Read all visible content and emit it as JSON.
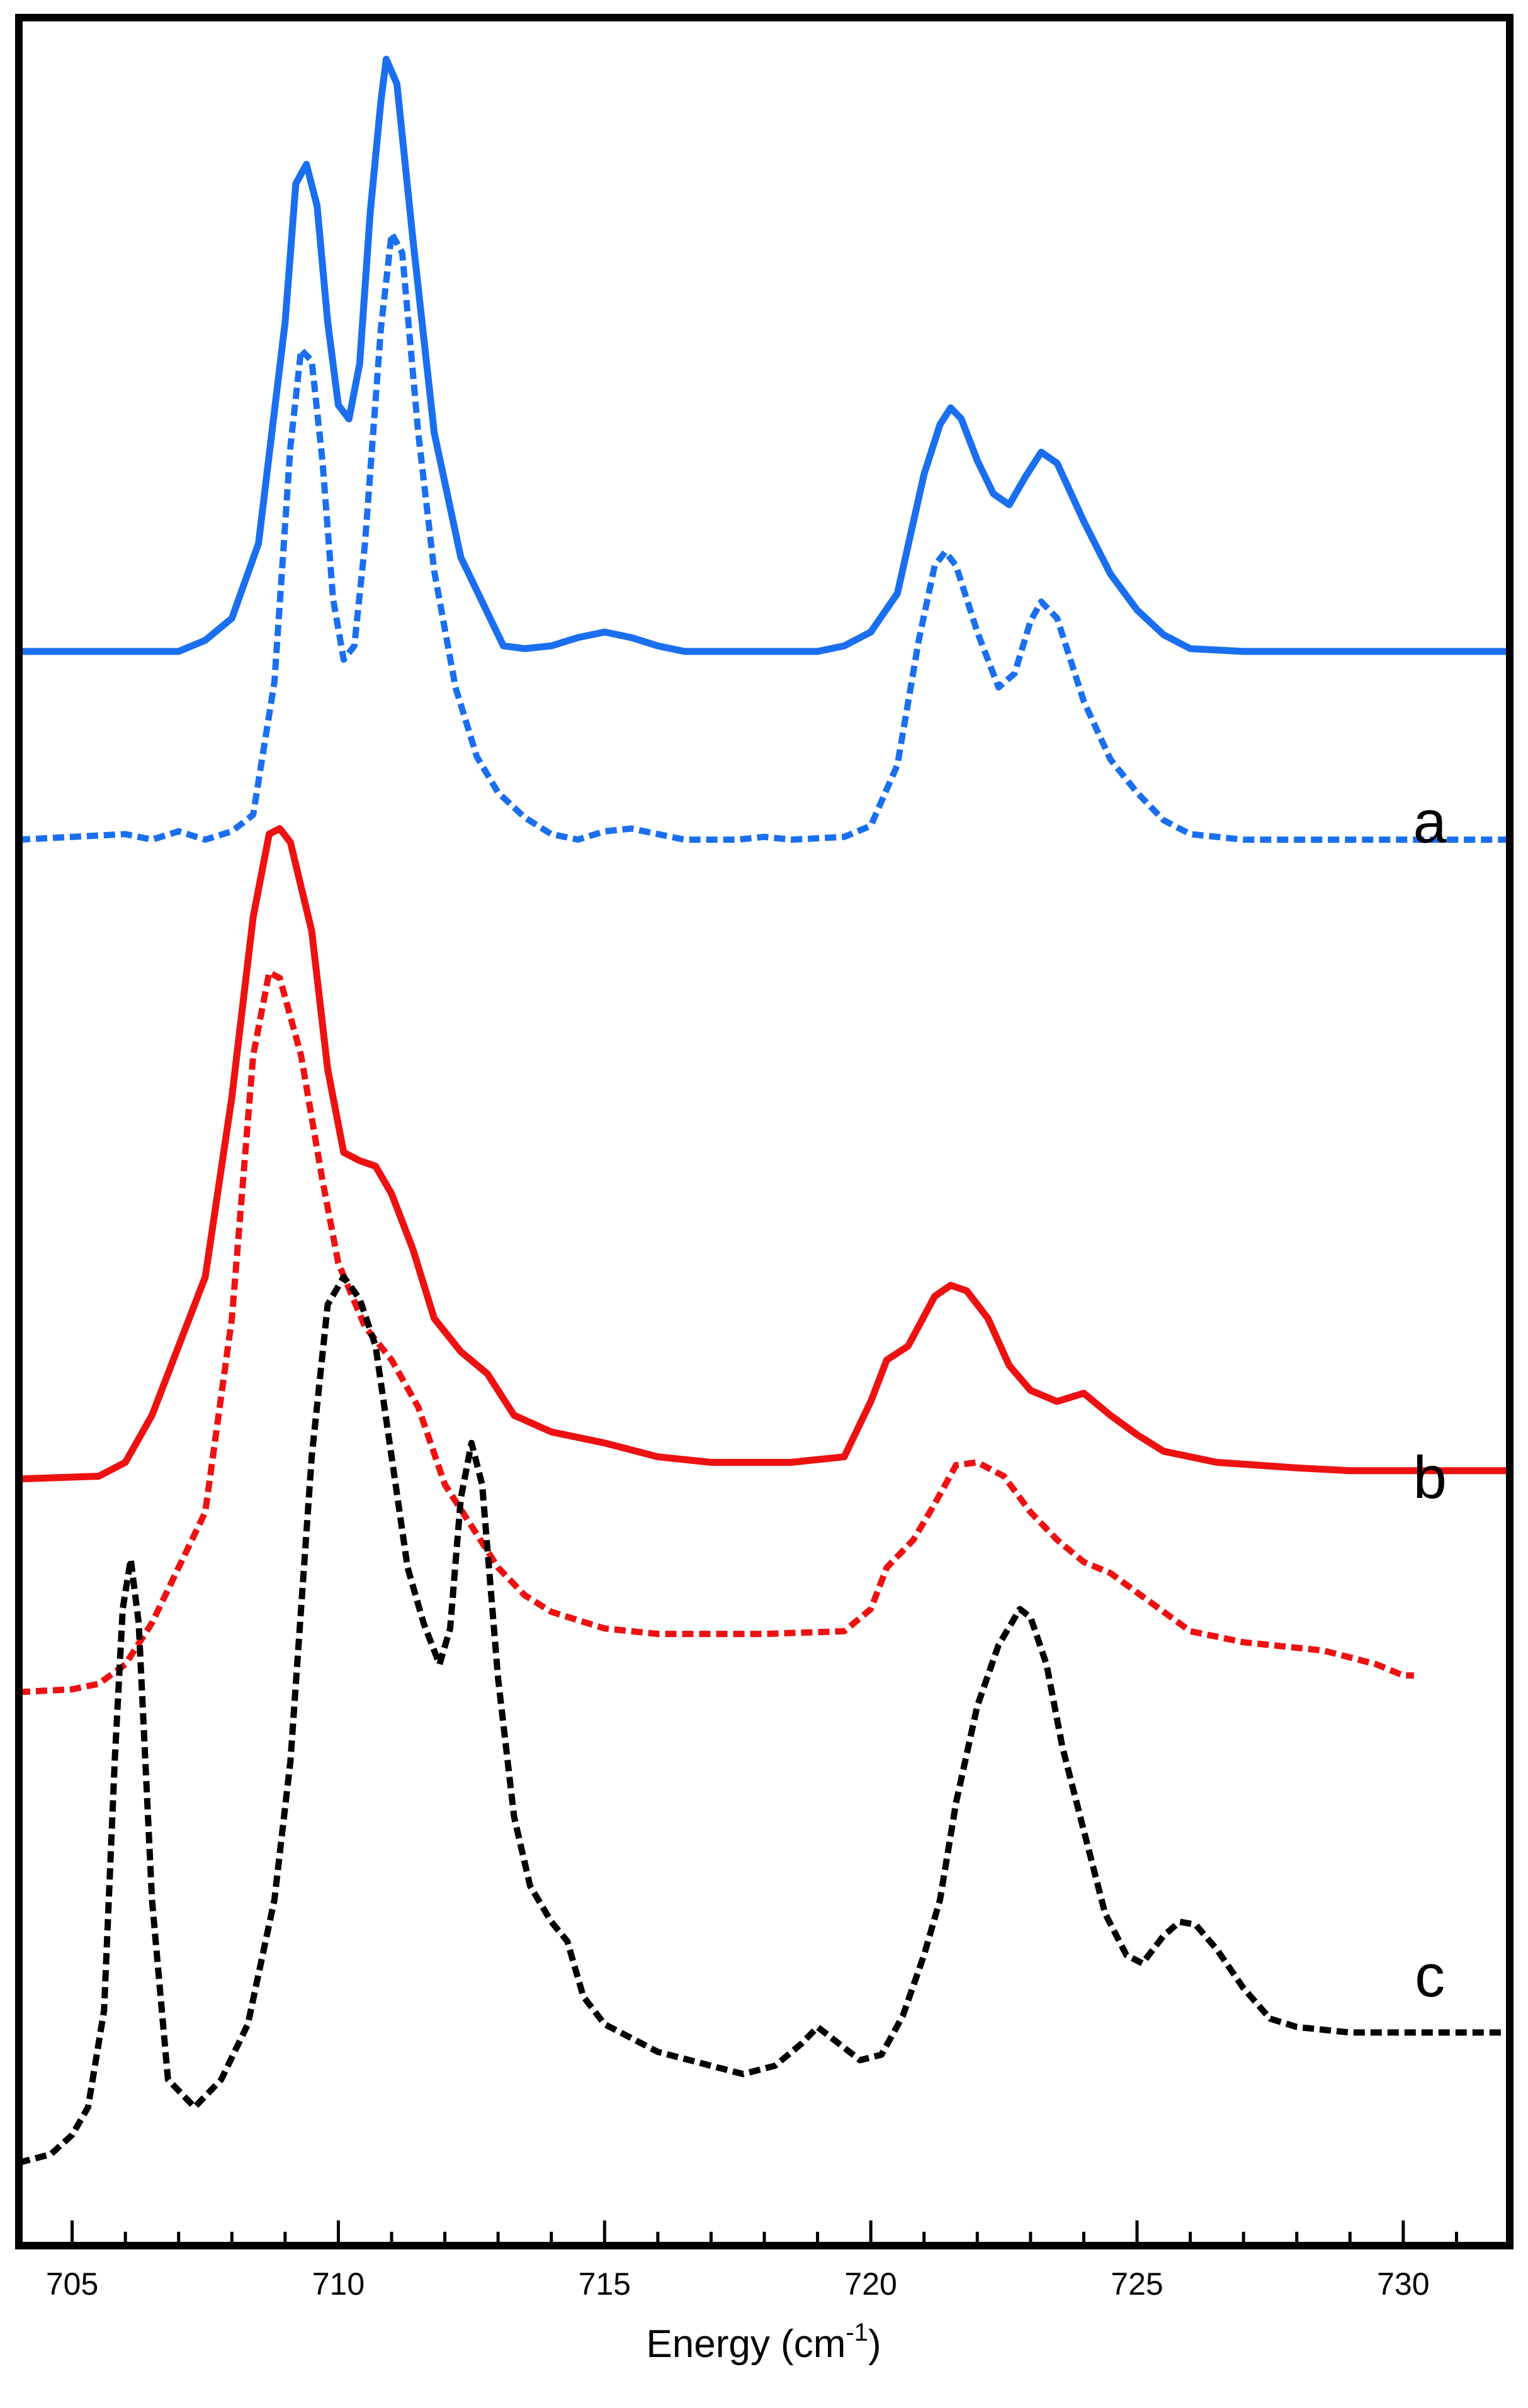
{
  "chart_data": {
    "type": "line",
    "title": "",
    "xlabel": {
      "main": "Energy (cm",
      "sup": "-1",
      "close": ")"
    },
    "ylabel": "",
    "xlim": [
      704.0,
      732.0
    ],
    "y_ticks_shown": false,
    "grid": false,
    "x_ticks": [
      705,
      710,
      715,
      720,
      725,
      730
    ],
    "panel_labels": [
      {
        "text": "a",
        "x": 730.5,
        "y": 38.2
      },
      {
        "text": "b",
        "x": 730.5,
        "y": 14.5
      },
      {
        "text": "c",
        "x": 730.5,
        "y": -3.5
      }
    ],
    "colors": {
      "blue": "#1a6ff0",
      "red": "#ee1111",
      "black": "#000000"
    },
    "series": [
      {
        "color": "blue",
        "style": "solid",
        "points": [
          [
            704.0,
            45.1
          ],
          [
            707.0,
            45.1
          ],
          [
            707.5,
            45.5
          ],
          [
            708.0,
            46.3
          ],
          [
            708.5,
            49.0
          ],
          [
            709.0,
            57.0
          ],
          [
            709.2,
            62.0
          ],
          [
            709.4,
            62.7
          ],
          [
            709.6,
            61.2
          ],
          [
            709.8,
            57.0
          ],
          [
            710.0,
            54.0
          ],
          [
            710.2,
            53.5
          ],
          [
            710.4,
            55.5
          ],
          [
            710.6,
            61.0
          ],
          [
            710.8,
            65.0
          ],
          [
            710.9,
            66.5
          ],
          [
            711.1,
            65.6
          ],
          [
            711.4,
            60.0
          ],
          [
            711.8,
            53.0
          ],
          [
            712.3,
            48.5
          ],
          [
            712.8,
            46.5
          ],
          [
            713.1,
            45.3
          ],
          [
            713.5,
            45.2
          ],
          [
            714.0,
            45.3
          ],
          [
            714.5,
            45.6
          ],
          [
            715.0,
            45.8
          ],
          [
            715.5,
            45.6
          ],
          [
            716.0,
            45.3
          ],
          [
            716.5,
            45.1
          ],
          [
            719.0,
            45.1
          ],
          [
            719.5,
            45.3
          ],
          [
            720.0,
            45.8
          ],
          [
            720.5,
            47.2
          ],
          [
            721.0,
            51.5
          ],
          [
            721.3,
            53.3
          ],
          [
            721.5,
            53.9
          ],
          [
            721.7,
            53.5
          ],
          [
            722.0,
            52.0
          ],
          [
            722.3,
            50.8
          ],
          [
            722.6,
            50.4
          ],
          [
            722.9,
            51.4
          ],
          [
            723.2,
            52.3
          ],
          [
            723.5,
            51.9
          ],
          [
            724.0,
            49.8
          ],
          [
            724.5,
            47.9
          ],
          [
            725.0,
            46.6
          ],
          [
            725.5,
            45.7
          ],
          [
            726.0,
            45.2
          ],
          [
            727.0,
            45.1
          ],
          [
            732.0,
            45.1
          ]
        ]
      },
      {
        "color": "blue",
        "style": "dashed",
        "points": [
          [
            704.0,
            38.3
          ],
          [
            705.0,
            38.4
          ],
          [
            706.0,
            38.5
          ],
          [
            706.5,
            38.3
          ],
          [
            707.0,
            38.6
          ],
          [
            707.5,
            38.3
          ],
          [
            708.0,
            38.6
          ],
          [
            708.4,
            39.2
          ],
          [
            708.8,
            44.0
          ],
          [
            709.1,
            52.5
          ],
          [
            709.3,
            56.0
          ],
          [
            709.5,
            55.6
          ],
          [
            709.7,
            52.0
          ],
          [
            709.9,
            47.0
          ],
          [
            710.1,
            44.8
          ],
          [
            710.3,
            45.3
          ],
          [
            710.5,
            49.0
          ],
          [
            710.8,
            56.8
          ],
          [
            711.0,
            60.2
          ],
          [
            711.2,
            59.5
          ],
          [
            711.5,
            53.0
          ],
          [
            711.8,
            48.0
          ],
          [
            712.2,
            43.8
          ],
          [
            712.6,
            41.3
          ],
          [
            713.0,
            40.0
          ],
          [
            713.5,
            39.1
          ],
          [
            714.0,
            38.5
          ],
          [
            714.5,
            38.3
          ],
          [
            715.0,
            38.6
          ],
          [
            715.5,
            38.7
          ],
          [
            716.0,
            38.5
          ],
          [
            716.5,
            38.3
          ],
          [
            717.5,
            38.3
          ],
          [
            718.0,
            38.4
          ],
          [
            718.5,
            38.3
          ],
          [
            719.5,
            38.4
          ],
          [
            720.0,
            38.8
          ],
          [
            720.5,
            41.0
          ],
          [
            720.9,
            45.5
          ],
          [
            721.2,
            48.2
          ],
          [
            721.4,
            48.7
          ],
          [
            721.6,
            48.2
          ],
          [
            722.0,
            45.8
          ],
          [
            722.4,
            43.8
          ],
          [
            722.7,
            44.3
          ],
          [
            723.0,
            46.2
          ],
          [
            723.2,
            46.9
          ],
          [
            723.5,
            46.3
          ],
          [
            724.0,
            43.3
          ],
          [
            724.5,
            41.2
          ],
          [
            725.0,
            40.0
          ],
          [
            725.5,
            39.0
          ],
          [
            726.0,
            38.5
          ],
          [
            727.0,
            38.3
          ],
          [
            732.0,
            38.3
          ]
        ]
      },
      {
        "color": "red",
        "style": "solid",
        "points": [
          [
            704.0,
            15.2
          ],
          [
            705.5,
            15.3
          ],
          [
            706.0,
            15.8
          ],
          [
            706.5,
            17.5
          ],
          [
            707.0,
            20.0
          ],
          [
            707.5,
            22.5
          ],
          [
            708.0,
            29.0
          ],
          [
            708.4,
            35.5
          ],
          [
            708.7,
            38.5
          ],
          [
            708.9,
            38.7
          ],
          [
            709.1,
            38.2
          ],
          [
            709.5,
            35.0
          ],
          [
            709.8,
            30.0
          ],
          [
            710.1,
            27.0
          ],
          [
            710.4,
            26.7
          ],
          [
            710.7,
            26.5
          ],
          [
            711.0,
            25.5
          ],
          [
            711.4,
            23.5
          ],
          [
            711.8,
            21.0
          ],
          [
            712.3,
            19.8
          ],
          [
            712.8,
            19.0
          ],
          [
            713.3,
            17.5
          ],
          [
            714.0,
            16.9
          ],
          [
            715.0,
            16.5
          ],
          [
            716.0,
            16.0
          ],
          [
            717.0,
            15.8
          ],
          [
            718.5,
            15.8
          ],
          [
            719.5,
            16.0
          ],
          [
            720.0,
            18.0
          ],
          [
            720.3,
            19.5
          ],
          [
            720.7,
            20.0
          ],
          [
            721.2,
            21.8
          ],
          [
            721.5,
            22.2
          ],
          [
            721.8,
            22.0
          ],
          [
            722.2,
            21.0
          ],
          [
            722.6,
            19.3
          ],
          [
            723.0,
            18.4
          ],
          [
            723.5,
            18.0
          ],
          [
            724.0,
            18.3
          ],
          [
            724.5,
            17.5
          ],
          [
            725.0,
            16.8
          ],
          [
            725.5,
            16.2
          ],
          [
            726.5,
            15.8
          ],
          [
            728.0,
            15.6
          ],
          [
            729.0,
            15.5
          ],
          [
            732.0,
            15.5
          ]
        ]
      },
      {
        "color": "red",
        "style": "dashed",
        "points": [
          [
            704.0,
            7.5
          ],
          [
            705.0,
            7.6
          ],
          [
            705.5,
            7.8
          ],
          [
            706.0,
            8.5
          ],
          [
            706.5,
            10.0
          ],
          [
            707.0,
            12.0
          ],
          [
            707.5,
            14.0
          ],
          [
            708.0,
            21.0
          ],
          [
            708.4,
            30.5
          ],
          [
            708.7,
            33.5
          ],
          [
            708.9,
            33.3
          ],
          [
            709.3,
            30.5
          ],
          [
            709.7,
            26.0
          ],
          [
            710.0,
            23.0
          ],
          [
            710.5,
            20.7
          ],
          [
            711.0,
            19.5
          ],
          [
            711.5,
            17.8
          ],
          [
            712.0,
            15.0
          ],
          [
            712.5,
            13.5
          ],
          [
            713.0,
            12.0
          ],
          [
            713.5,
            11.0
          ],
          [
            714.0,
            10.4
          ],
          [
            715.0,
            9.8
          ],
          [
            716.0,
            9.6
          ],
          [
            718.0,
            9.6
          ],
          [
            719.5,
            9.7
          ],
          [
            720.0,
            10.5
          ],
          [
            720.3,
            12.0
          ],
          [
            720.8,
            13.0
          ],
          [
            721.2,
            14.3
          ],
          [
            721.6,
            15.7
          ],
          [
            722.0,
            15.8
          ],
          [
            722.5,
            15.3
          ],
          [
            723.0,
            14.0
          ],
          [
            723.5,
            13.0
          ],
          [
            724.0,
            12.2
          ],
          [
            724.5,
            11.8
          ],
          [
            725.0,
            11.1
          ],
          [
            725.5,
            10.4
          ],
          [
            726.0,
            9.7
          ],
          [
            727.0,
            9.3
          ],
          [
            728.5,
            9.0
          ],
          [
            729.5,
            8.5
          ],
          [
            730.0,
            8.1
          ],
          [
            730.2,
            8.1
          ]
        ]
      },
      {
        "color": "black",
        "style": "dashed",
        "points": [
          [
            704.0,
            -9.5
          ],
          [
            704.6,
            -9.2
          ],
          [
            705.0,
            -8.5
          ],
          [
            705.3,
            -7.5
          ],
          [
            705.6,
            -4.0
          ],
          [
            705.8,
            5.0
          ],
          [
            705.95,
            10.5
          ],
          [
            706.1,
            12.3
          ],
          [
            706.25,
            10.0
          ],
          [
            706.5,
            0.0
          ],
          [
            706.8,
            -6.5
          ],
          [
            707.3,
            -7.5
          ],
          [
            707.8,
            -6.5
          ],
          [
            708.3,
            -4.5
          ],
          [
            708.8,
            0.0
          ],
          [
            709.1,
            5.0
          ],
          [
            709.5,
            16.0
          ],
          [
            709.8,
            21.5
          ],
          [
            710.1,
            22.5
          ],
          [
            710.4,
            21.7
          ],
          [
            710.7,
            20.0
          ],
          [
            711.0,
            16.0
          ],
          [
            711.3,
            12.0
          ],
          [
            711.6,
            10.0
          ],
          [
            711.9,
            8.5
          ],
          [
            712.1,
            9.8
          ],
          [
            712.3,
            14.5
          ],
          [
            712.5,
            16.5
          ],
          [
            712.7,
            15.0
          ],
          [
            713.0,
            8.0
          ],
          [
            713.3,
            3.0
          ],
          [
            713.6,
            0.5
          ],
          [
            714.0,
            -0.8
          ],
          [
            714.3,
            -1.5
          ],
          [
            714.6,
            -3.5
          ],
          [
            715.0,
            -4.5
          ],
          [
            716.0,
            -5.5
          ],
          [
            717.0,
            -6.0
          ],
          [
            717.6,
            -6.3
          ],
          [
            718.2,
            -6.0
          ],
          [
            718.7,
            -5.2
          ],
          [
            719.0,
            -4.6
          ],
          [
            719.4,
            -5.2
          ],
          [
            719.8,
            -5.8
          ],
          [
            720.2,
            -5.6
          ],
          [
            720.6,
            -4.2
          ],
          [
            721.0,
            -2.0
          ],
          [
            721.3,
            0.0
          ],
          [
            721.6,
            3.5
          ],
          [
            722.0,
            7.0
          ],
          [
            722.4,
            9.2
          ],
          [
            722.8,
            10.5
          ],
          [
            723.0,
            10.2
          ],
          [
            723.3,
            8.5
          ],
          [
            723.6,
            5.5
          ],
          [
            724.0,
            2.5
          ],
          [
            724.4,
            -0.5
          ],
          [
            724.8,
            -2.0
          ],
          [
            725.1,
            -2.3
          ],
          [
            725.5,
            -1.3
          ],
          [
            725.8,
            -0.8
          ],
          [
            726.1,
            -0.9
          ],
          [
            726.5,
            -1.8
          ],
          [
            727.0,
            -3.2
          ],
          [
            727.5,
            -4.3
          ],
          [
            728.0,
            -4.6
          ],
          [
            729.0,
            -4.8
          ],
          [
            732.0,
            -4.8
          ]
        ]
      }
    ]
  }
}
